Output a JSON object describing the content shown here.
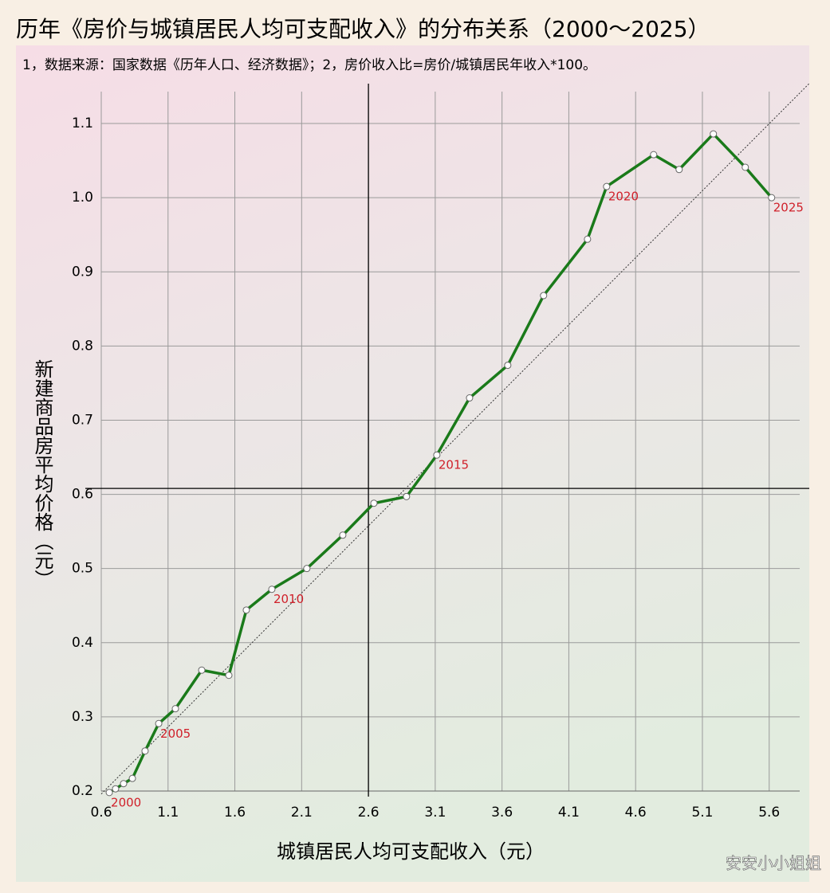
{
  "chart_data": {
    "type": "line",
    "title": "历年《房价与城镇居民人均可支配收入》的分布关系（2000～2025）",
    "subtitle": "1，数据来源：国家数据《历年人口、经济数据》；2，房价收入比=房价/城镇居民年收入*100。",
    "x_label": "城镇居民人均可支配收入（元）",
    "y_label": "新建商品房平均价格（元）",
    "watermark": "安安小小姐姐",
    "x": [
      0.66,
      0.707,
      0.767,
      0.833,
      0.928,
      1.03,
      1.155,
      1.352,
      1.555,
      1.686,
      1.877,
      2.139,
      2.408,
      2.641,
      2.885,
      3.112,
      3.357,
      3.643,
      3.911,
      4.24,
      4.383,
      4.735,
      4.926,
      5.182,
      5.421,
      5.618
    ],
    "series": [
      {
        "color": "#1a7a1a",
        "values": [
          0.198,
          0.203,
          0.21,
          0.217,
          0.254,
          0.291,
          0.311,
          0.363,
          0.356,
          0.444,
          0.472,
          0.5,
          0.545,
          0.588,
          0.597,
          0.653,
          0.73,
          0.774,
          0.868,
          0.944,
          1.015,
          1.058,
          1.038,
          1.086,
          1.041,
          1.0
        ],
        "point_labels": [
          "2000",
          null,
          null,
          null,
          null,
          "2005",
          null,
          null,
          null,
          null,
          "2010",
          null,
          null,
          null,
          null,
          "2015",
          null,
          null,
          null,
          null,
          "2020",
          null,
          null,
          null,
          null,
          "2025"
        ]
      }
    ],
    "label_color": "#d0202a",
    "xlim": [
      0.6,
      5.9
    ],
    "ylim": [
      0.2,
      1.143
    ],
    "xticks": [
      0.6,
      1.1,
      1.6,
      2.1,
      2.6,
      3.1,
      3.6,
      4.1,
      4.6,
      5.1,
      5.6
    ],
    "yticks": [
      0.2,
      0.3,
      0.4,
      0.5,
      0.6,
      0.7,
      0.8,
      0.9,
      {
        "value": 1,
        "label": "1.0"
      },
      1.1
    ],
    "grid": true,
    "vline": 2.6,
    "hline": 0.608,
    "reference_line": {
      "x": [
        0.6,
        5.9
      ],
      "y": [
        0.196,
        1.154
      ]
    }
  }
}
